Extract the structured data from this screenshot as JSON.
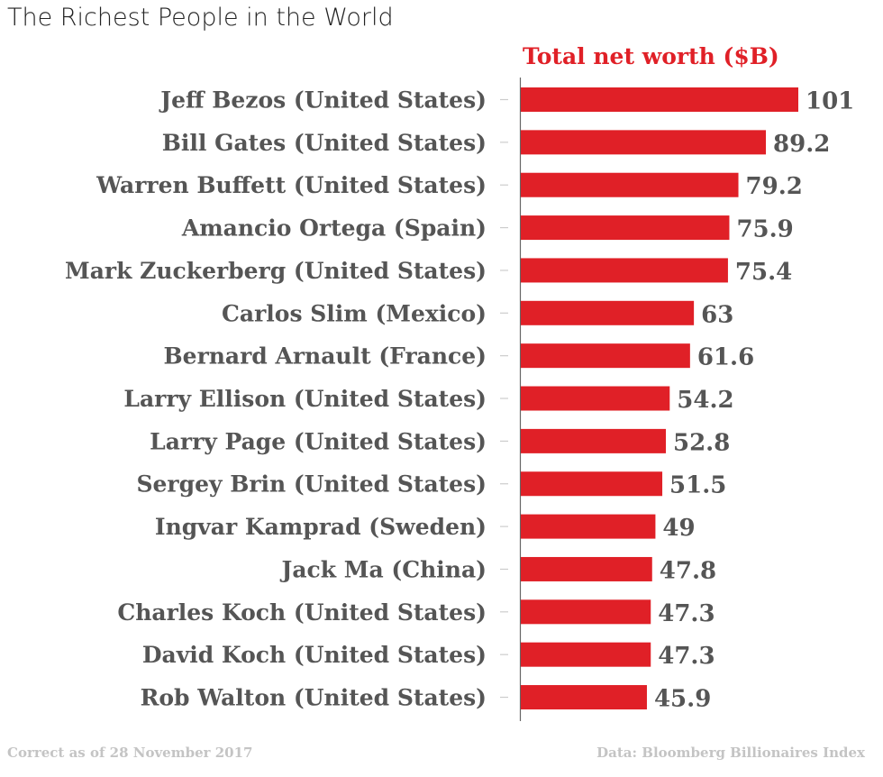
{
  "chart_data": {
    "type": "bar",
    "orientation": "horizontal",
    "title": "The Richest People in the World",
    "value_header": "Total net worth ($B)",
    "categories": [
      "Jeff Bezos (United States)",
      "Bill Gates (United States)",
      "Warren Buffett (United States)",
      "Amancio Ortega (Spain)",
      "Mark Zuckerberg (United States)",
      "Carlos Slim (Mexico)",
      "Bernard Arnault (France)",
      "Larry Ellison (United States)",
      "Larry Page (United States)",
      "Sergey Brin (United States)",
      "Ingvar Kamprad (Sweden)",
      "Jack Ma (China)",
      "Charles Koch (United States)",
      "David Koch (United States)",
      "Rob Walton (United States)"
    ],
    "values": [
      101,
      89.2,
      79.2,
      75.9,
      75.4,
      63,
      61.6,
      54.2,
      52.8,
      51.5,
      49,
      47.8,
      47.3,
      47.3,
      45.9
    ],
    "value_labels": [
      "101",
      "89.2",
      "79.2",
      "75.9",
      "75.4",
      "63",
      "61.6",
      "54.2",
      "52.8",
      "51.5",
      "49",
      "47.8",
      "47.3",
      "47.3",
      "45.9"
    ],
    "xlim": [
      0,
      101
    ],
    "grid": false,
    "bar_color": "#e02027",
    "footnote_left": "Correct as of 28 November 2017",
    "footnote_right": "Data: Bloomberg Billionaires Index"
  }
}
